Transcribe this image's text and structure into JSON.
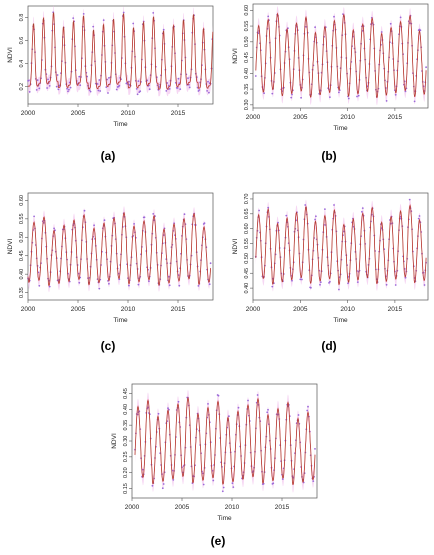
{
  "figure": {
    "panels": [
      {
        "letter": "(a)",
        "xlabel": "Time",
        "ylabel": "NDVI"
      },
      {
        "letter": "(b)",
        "xlabel": "Time",
        "ylabel": "NDVI"
      },
      {
        "letter": "(c)",
        "xlabel": "Time",
        "ylabel": "NDVI"
      },
      {
        "letter": "(d)",
        "xlabel": "Time",
        "ylabel": "NDVI"
      },
      {
        "letter": "(e)",
        "xlabel": "Time",
        "ylabel": "NDVI"
      }
    ]
  },
  "colors": {
    "fitted_line": "#e8262f",
    "smoothed_line": "#5a6a3a",
    "observed_points": "#9b6ad8",
    "uncertainty_band": "#f2c6ee",
    "axes": "#555555"
  },
  "chart_data": [
    {
      "type": "line",
      "panel": "(a)",
      "xlabel": "Time",
      "ylabel": "NDVI",
      "xlim": [
        2000,
        2018.5
      ],
      "ylim": [
        0.05,
        0.9
      ],
      "xticks": [
        2000,
        2005,
        2010,
        2015
      ],
      "yticks": [
        0.2,
        0.4,
        0.6,
        0.8
      ],
      "ytick_labels": [
        "0.2",
        "0.4",
        "0.6",
        "0.8"
      ],
      "series": [
        {
          "years": [
            2000,
            2018.5
          ],
          "min": 0.15,
          "max": 0.83,
          "trend": 0.0,
          "phase": 0.55
        }
      ]
    },
    {
      "type": "line",
      "panel": "(b)",
      "xlabel": "Time",
      "ylabel": "NDVI",
      "xlim": [
        2000,
        2018.5
      ],
      "ylim": [
        0.29,
        0.62
      ],
      "xticks": [
        2000,
        2005,
        2010,
        2015
      ],
      "yticks": [
        0.3,
        0.35,
        0.4,
        0.45,
        0.5,
        0.55,
        0.6
      ],
      "ytick_labels": [
        "0.30",
        "0.35",
        "0.40",
        "0.45",
        "0.50",
        "0.55",
        "0.60"
      ],
      "series": [
        {
          "years": [
            2000.3,
            2018.3
          ],
          "min": 0.31,
          "max": 0.58,
          "trend": 0.0,
          "phase": 0.6
        }
      ]
    },
    {
      "type": "line",
      "panel": "(c)",
      "xlabel": "Time",
      "ylabel": "NDVI",
      "xlim": [
        2000,
        2018.5
      ],
      "ylim": [
        0.33,
        0.62
      ],
      "xticks": [
        2000,
        2005,
        2010,
        2015
      ],
      "yticks": [
        0.35,
        0.4,
        0.45,
        0.5,
        0.55,
        0.6
      ],
      "ytick_labels": [
        "0.35",
        "0.40",
        "0.45",
        "0.50",
        "0.55",
        "0.60"
      ],
      "series": [
        {
          "years": [
            2000,
            2018.3
          ],
          "min": 0.36,
          "max": 0.56,
          "trend": 0.0,
          "phase": 0.6
        }
      ]
    },
    {
      "type": "line",
      "panel": "(d)",
      "xlabel": "Time",
      "ylabel": "NDVI",
      "xlim": [
        2000,
        2018.5
      ],
      "ylim": [
        0.36,
        0.72
      ],
      "xticks": [
        2000,
        2005,
        2010,
        2015
      ],
      "yticks": [
        0.4,
        0.45,
        0.5,
        0.55,
        0.6,
        0.65,
        0.7
      ],
      "ytick_labels": [
        "0.40",
        "0.45",
        "0.50",
        "0.55",
        "0.60",
        "0.65",
        "0.70"
      ],
      "series": [
        {
          "years": [
            2000.3,
            2018.3
          ],
          "min": 0.4,
          "max": 0.67,
          "trend": 0.0,
          "phase": 0.6
        }
      ]
    },
    {
      "type": "line",
      "panel": "(e)",
      "xlabel": "Time",
      "ylabel": "NDVI",
      "xlim": [
        2000,
        2018.5
      ],
      "ylim": [
        0.12,
        0.48
      ],
      "xticks": [
        2000,
        2005,
        2010,
        2015
      ],
      "yticks": [
        0.15,
        0.2,
        0.25,
        0.3,
        0.35,
        0.4,
        0.45
      ],
      "ytick_labels": [
        "0.15",
        "0.20",
        "0.25",
        "0.30",
        "0.35",
        "0.40",
        "0.45"
      ],
      "series": [
        {
          "years": [
            2000.3,
            2018.3
          ],
          "min": 0.15,
          "max": 0.43,
          "trend": 0.0,
          "phase": 0.6
        }
      ]
    }
  ]
}
